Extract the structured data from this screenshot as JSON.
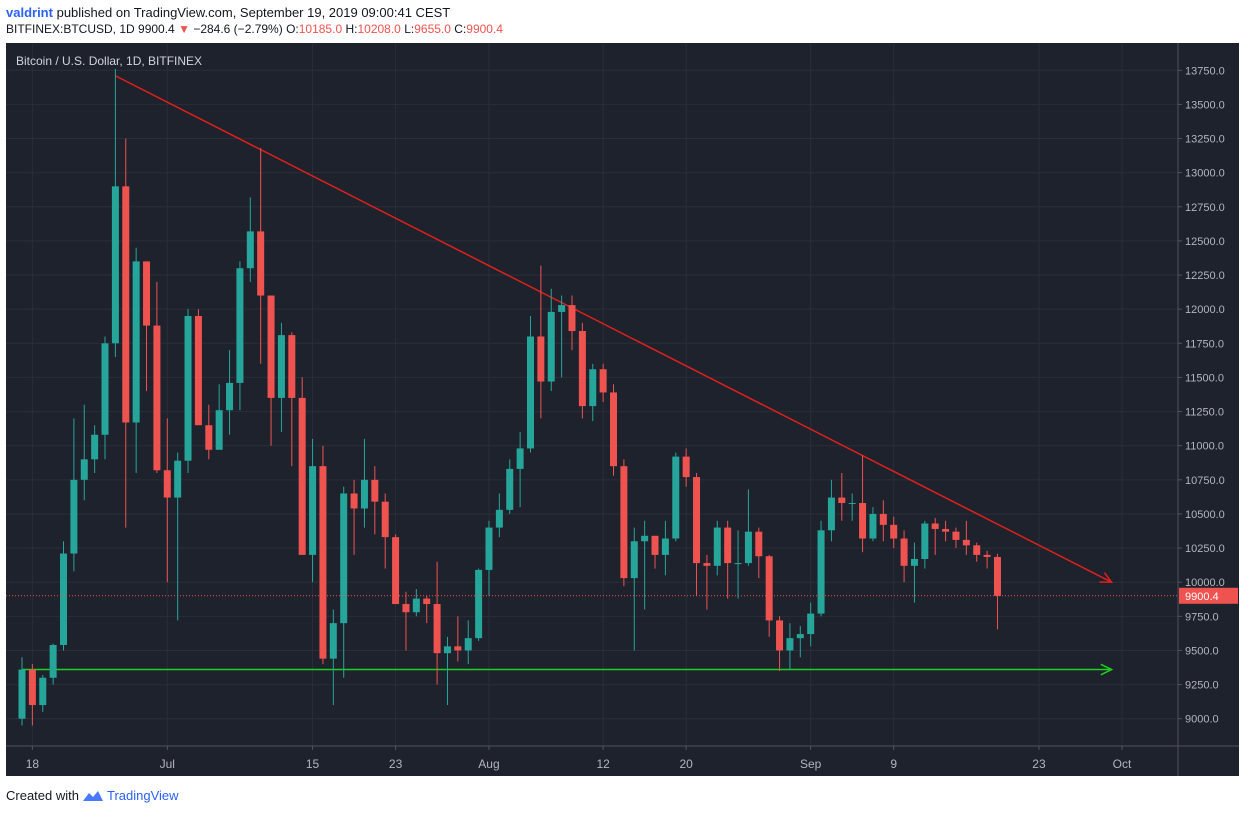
{
  "header": {
    "user": "valdrint",
    "published": "published on TradingView.com, September 19, 2019 09:00:41 CEST",
    "symbol": "BITFINEX:BTCUSD, 1D",
    "last": "9900.4",
    "change": "−284.6 (−2.79%)",
    "o_label": "O:",
    "o_val": "10185.0",
    "h_label": "H:",
    "h_val": "10208.0",
    "l_label": "L:",
    "l_val": "9655.0",
    "c_label": "C:",
    "c_val": "9900.4"
  },
  "footer": {
    "created_with": "Created with",
    "brand": "TradingView"
  },
  "colors": {
    "up": "#26a69a",
    "down": "#ef5350",
    "resistance": "#e0201c",
    "support": "#1fd01f",
    "bg": "#1e222d",
    "grid": "#2a2e39",
    "axis_text": "#b2b5be"
  },
  "chart_data": {
    "type": "candlestick",
    "title": "Bitcoin / U.S. Dollar, 1D, BITFINEX",
    "ylim": [
      8800,
      13950
    ],
    "y_ticks": [
      9000,
      9250,
      9500,
      9750,
      10000,
      10250,
      10500,
      10750,
      11000,
      11250,
      11500,
      11750,
      12000,
      12250,
      12500,
      12750,
      13000,
      13250,
      13500,
      13750
    ],
    "y_tick_labels": [
      "9000.0",
      "9250.0",
      "9500.0",
      "9750.0",
      "10000.0",
      "10250.0",
      "10500.0",
      "10750.0",
      "11000.0",
      "11250.0",
      "11500.0",
      "11750.0",
      "12000.0",
      "12250.0",
      "12500.0",
      "12750.0",
      "13000.0",
      "13250.0",
      "13500.0",
      "13750.0"
    ],
    "x_ticks": [
      {
        "date": "2019-06-18",
        "label": "18"
      },
      {
        "date": "2019-07-01",
        "label": "Jul"
      },
      {
        "date": "2019-07-15",
        "label": "15"
      },
      {
        "date": "2019-07-23",
        "label": "23"
      },
      {
        "date": "2019-08-01",
        "label": "Aug"
      },
      {
        "date": "2019-08-12",
        "label": "12"
      },
      {
        "date": "2019-08-20",
        "label": "20"
      },
      {
        "date": "2019-09-01",
        "label": "Sep"
      },
      {
        "date": "2019-09-09",
        "label": "9"
      },
      {
        "date": "2019-09-23",
        "label": "23"
      },
      {
        "date": "2019-10-01",
        "label": "Oct"
      }
    ],
    "x_range": [
      "2019-06-17",
      "2019-10-07"
    ],
    "last_price": 9900.4,
    "last_price_label": "9900.4",
    "candles": [
      {
        "date": "2019-06-17",
        "o": 9000,
        "h": 9450,
        "l": 8950,
        "c": 9360
      },
      {
        "date": "2019-06-18",
        "o": 9360,
        "h": 9400,
        "l": 8950,
        "c": 9100
      },
      {
        "date": "2019-06-19",
        "o": 9100,
        "h": 9320,
        "l": 9050,
        "c": 9300
      },
      {
        "date": "2019-06-20",
        "o": 9300,
        "h": 9550,
        "l": 9250,
        "c": 9540
      },
      {
        "date": "2019-06-21",
        "o": 9540,
        "h": 10300,
        "l": 9500,
        "c": 10210
      },
      {
        "date": "2019-06-22",
        "o": 10210,
        "h": 11200,
        "l": 10080,
        "c": 10750
      },
      {
        "date": "2019-06-23",
        "o": 10750,
        "h": 11300,
        "l": 10600,
        "c": 10900
      },
      {
        "date": "2019-06-24",
        "o": 10900,
        "h": 11150,
        "l": 10800,
        "c": 11080
      },
      {
        "date": "2019-06-25",
        "o": 11080,
        "h": 11800,
        "l": 10900,
        "c": 11750
      },
      {
        "date": "2019-06-26",
        "o": 11750,
        "h": 13760,
        "l": 11650,
        "c": 12900
      },
      {
        "date": "2019-06-27",
        "o": 12900,
        "h": 13250,
        "l": 10400,
        "c": 11170
      },
      {
        "date": "2019-06-28",
        "o": 11170,
        "h": 12450,
        "l": 10800,
        "c": 12350
      },
      {
        "date": "2019-06-29",
        "o": 12350,
        "h": 12350,
        "l": 11400,
        "c": 11880
      },
      {
        "date": "2019-06-30",
        "o": 11880,
        "h": 12200,
        "l": 10800,
        "c": 10820
      },
      {
        "date": "2019-07-01",
        "o": 10820,
        "h": 11200,
        "l": 10000,
        "c": 10620
      },
      {
        "date": "2019-07-02",
        "o": 10620,
        "h": 10950,
        "l": 9720,
        "c": 10890
      },
      {
        "date": "2019-07-03",
        "o": 10890,
        "h": 12000,
        "l": 10800,
        "c": 11950
      },
      {
        "date": "2019-07-04",
        "o": 11950,
        "h": 12000,
        "l": 11200,
        "c": 11150
      },
      {
        "date": "2019-07-05",
        "o": 11150,
        "h": 11300,
        "l": 10900,
        "c": 10970
      },
      {
        "date": "2019-07-06",
        "o": 10970,
        "h": 11450,
        "l": 10980,
        "c": 11260
      },
      {
        "date": "2019-07-07",
        "o": 11260,
        "h": 11700,
        "l": 11080,
        "c": 11460
      },
      {
        "date": "2019-07-08",
        "o": 11460,
        "h": 12350,
        "l": 11260,
        "c": 12300
      },
      {
        "date": "2019-07-09",
        "o": 12300,
        "h": 12820,
        "l": 12200,
        "c": 12570
      },
      {
        "date": "2019-07-10",
        "o": 12570,
        "h": 13180,
        "l": 11600,
        "c": 12100
      },
      {
        "date": "2019-07-11",
        "o": 12100,
        "h": 12100,
        "l": 11000,
        "c": 11350
      },
      {
        "date": "2019-07-12",
        "o": 11350,
        "h": 11900,
        "l": 11100,
        "c": 11810
      },
      {
        "date": "2019-07-13",
        "o": 11810,
        "h": 11830,
        "l": 10850,
        "c": 11350
      },
      {
        "date": "2019-07-14",
        "o": 11350,
        "h": 11500,
        "l": 10200,
        "c": 10200
      },
      {
        "date": "2019-07-15",
        "o": 10200,
        "h": 11050,
        "l": 10000,
        "c": 10850
      },
      {
        "date": "2019-07-16",
        "o": 10850,
        "h": 11000,
        "l": 9400,
        "c": 9440
      },
      {
        "date": "2019-07-17",
        "o": 9440,
        "h": 9800,
        "l": 9100,
        "c": 9700
      },
      {
        "date": "2019-07-18",
        "o": 9700,
        "h": 10700,
        "l": 9300,
        "c": 10650
      },
      {
        "date": "2019-07-19",
        "o": 10650,
        "h": 10750,
        "l": 10200,
        "c": 10540
      },
      {
        "date": "2019-07-20",
        "o": 10540,
        "h": 11050,
        "l": 10400,
        "c": 10750
      },
      {
        "date": "2019-07-21",
        "o": 10750,
        "h": 10850,
        "l": 10350,
        "c": 10590
      },
      {
        "date": "2019-07-22",
        "o": 10590,
        "h": 10650,
        "l": 10100,
        "c": 10330
      },
      {
        "date": "2019-07-23",
        "o": 10330,
        "h": 10350,
        "l": 9850,
        "c": 9840
      },
      {
        "date": "2019-07-24",
        "o": 9840,
        "h": 9930,
        "l": 9500,
        "c": 9780
      },
      {
        "date": "2019-07-25",
        "o": 9780,
        "h": 9950,
        "l": 9750,
        "c": 9880
      },
      {
        "date": "2019-07-26",
        "o": 9880,
        "h": 9900,
        "l": 9700,
        "c": 9840
      },
      {
        "date": "2019-07-27",
        "o": 9840,
        "h": 10150,
        "l": 9250,
        "c": 9480
      },
      {
        "date": "2019-07-28",
        "o": 9480,
        "h": 9600,
        "l": 9100,
        "c": 9530
      },
      {
        "date": "2019-07-29",
        "o": 9530,
        "h": 9750,
        "l": 9420,
        "c": 9500
      },
      {
        "date": "2019-07-30",
        "o": 9500,
        "h": 9720,
        "l": 9400,
        "c": 9590
      },
      {
        "date": "2019-07-31",
        "o": 9590,
        "h": 10100,
        "l": 9570,
        "c": 10090
      },
      {
        "date": "2019-08-01",
        "o": 10090,
        "h": 10450,
        "l": 9900,
        "c": 10400
      },
      {
        "date": "2019-08-02",
        "o": 10400,
        "h": 10650,
        "l": 10330,
        "c": 10530
      },
      {
        "date": "2019-08-03",
        "o": 10530,
        "h": 10900,
        "l": 10500,
        "c": 10830
      },
      {
        "date": "2019-08-04",
        "o": 10830,
        "h": 11100,
        "l": 10550,
        "c": 10980
      },
      {
        "date": "2019-08-05",
        "o": 10980,
        "h": 11950,
        "l": 10950,
        "c": 11800
      },
      {
        "date": "2019-08-06",
        "o": 11800,
        "h": 12320,
        "l": 11200,
        "c": 11470
      },
      {
        "date": "2019-08-07",
        "o": 11470,
        "h": 12150,
        "l": 11400,
        "c": 11980
      },
      {
        "date": "2019-08-08",
        "o": 11980,
        "h": 12100,
        "l": 11500,
        "c": 12030
      },
      {
        "date": "2019-08-09",
        "o": 12030,
        "h": 12100,
        "l": 11700,
        "c": 11840
      },
      {
        "date": "2019-08-10",
        "o": 11840,
        "h": 11900,
        "l": 11200,
        "c": 11290
      },
      {
        "date": "2019-08-11",
        "o": 11290,
        "h": 11600,
        "l": 11180,
        "c": 11560
      },
      {
        "date": "2019-08-12",
        "o": 11560,
        "h": 11600,
        "l": 11320,
        "c": 11390
      },
      {
        "date": "2019-08-13",
        "o": 11390,
        "h": 11450,
        "l": 10780,
        "c": 10850
      },
      {
        "date": "2019-08-14",
        "o": 10850,
        "h": 10900,
        "l": 9970,
        "c": 10030
      },
      {
        "date": "2019-08-15",
        "o": 10030,
        "h": 10400,
        "l": 9500,
        "c": 10300
      },
      {
        "date": "2019-08-16",
        "o": 10300,
        "h": 10450,
        "l": 9800,
        "c": 10340
      },
      {
        "date": "2019-08-17",
        "o": 10340,
        "h": 10330,
        "l": 10100,
        "c": 10200
      },
      {
        "date": "2019-08-18",
        "o": 10200,
        "h": 10450,
        "l": 10050,
        "c": 10320
      },
      {
        "date": "2019-08-19",
        "o": 10320,
        "h": 10950,
        "l": 10300,
        "c": 10920
      },
      {
        "date": "2019-08-20",
        "o": 10920,
        "h": 10980,
        "l": 10700,
        "c": 10770
      },
      {
        "date": "2019-08-21",
        "o": 10770,
        "h": 10800,
        "l": 9900,
        "c": 10140
      },
      {
        "date": "2019-08-22",
        "o": 10140,
        "h": 10200,
        "l": 9800,
        "c": 10120
      },
      {
        "date": "2019-08-23",
        "o": 10120,
        "h": 10450,
        "l": 10050,
        "c": 10400
      },
      {
        "date": "2019-08-24",
        "o": 10400,
        "h": 10450,
        "l": 9880,
        "c": 10140
      },
      {
        "date": "2019-08-25",
        "o": 10140,
        "h": 10380,
        "l": 9880,
        "c": 10140
      },
      {
        "date": "2019-08-26",
        "o": 10140,
        "h": 10680,
        "l": 10120,
        "c": 10370
      },
      {
        "date": "2019-08-27",
        "o": 10370,
        "h": 10400,
        "l": 10030,
        "c": 10190
      },
      {
        "date": "2019-08-28",
        "o": 10190,
        "h": 10200,
        "l": 9600,
        "c": 9720
      },
      {
        "date": "2019-08-29",
        "o": 9720,
        "h": 9750,
        "l": 9350,
        "c": 9500
      },
      {
        "date": "2019-08-30",
        "o": 9500,
        "h": 9700,
        "l": 9360,
        "c": 9590
      },
      {
        "date": "2019-08-31",
        "o": 9590,
        "h": 9680,
        "l": 9450,
        "c": 9620
      },
      {
        "date": "2019-09-01",
        "o": 9620,
        "h": 9850,
        "l": 9530,
        "c": 9770
      },
      {
        "date": "2019-09-02",
        "o": 9770,
        "h": 10450,
        "l": 9750,
        "c": 10380
      },
      {
        "date": "2019-09-03",
        "o": 10380,
        "h": 10750,
        "l": 10300,
        "c": 10620
      },
      {
        "date": "2019-09-04",
        "o": 10620,
        "h": 10800,
        "l": 10450,
        "c": 10580
      },
      {
        "date": "2019-09-05",
        "o": 10580,
        "h": 10650,
        "l": 10450,
        "c": 10580
      },
      {
        "date": "2019-09-06",
        "o": 10580,
        "h": 10930,
        "l": 10220,
        "c": 10320
      },
      {
        "date": "2019-09-07",
        "o": 10320,
        "h": 10550,
        "l": 10300,
        "c": 10500
      },
      {
        "date": "2019-09-08",
        "o": 10500,
        "h": 10600,
        "l": 10300,
        "c": 10420
      },
      {
        "date": "2019-09-09",
        "o": 10420,
        "h": 10480,
        "l": 10250,
        "c": 10320
      },
      {
        "date": "2019-09-10",
        "o": 10320,
        "h": 10380,
        "l": 10000,
        "c": 10120
      },
      {
        "date": "2019-09-11",
        "o": 10120,
        "h": 10290,
        "l": 9850,
        "c": 10170
      },
      {
        "date": "2019-09-12",
        "o": 10170,
        "h": 10450,
        "l": 10100,
        "c": 10430
      },
      {
        "date": "2019-09-13",
        "o": 10430,
        "h": 10470,
        "l": 10200,
        "c": 10390
      },
      {
        "date": "2019-09-14",
        "o": 10390,
        "h": 10450,
        "l": 10300,
        "c": 10370
      },
      {
        "date": "2019-09-15",
        "o": 10370,
        "h": 10400,
        "l": 10250,
        "c": 10310
      },
      {
        "date": "2019-09-16",
        "o": 10310,
        "h": 10450,
        "l": 10200,
        "c": 10270
      },
      {
        "date": "2019-09-17",
        "o": 10270,
        "h": 10290,
        "l": 10150,
        "c": 10200
      },
      {
        "date": "2019-09-18",
        "o": 10200,
        "h": 10230,
        "l": 10100,
        "c": 10185
      },
      {
        "date": "2019-09-19",
        "o": 10185,
        "h": 10208,
        "l": 9655,
        "c": 9900.4
      }
    ],
    "trendlines": [
      {
        "name": "",
        "color": "#e0201c",
        "from": {
          "date": "2019-06-26",
          "price": 13710
        },
        "to": {
          "date": "2019-09-30",
          "price": 10000
        },
        "arrow": true
      },
      {
        "name": "",
        "color": "#1fd01f",
        "from": {
          "date": "2019-06-17",
          "price": 9360
        },
        "to": {
          "date": "2019-09-30",
          "price": 9360
        },
        "arrow": true
      }
    ]
  }
}
